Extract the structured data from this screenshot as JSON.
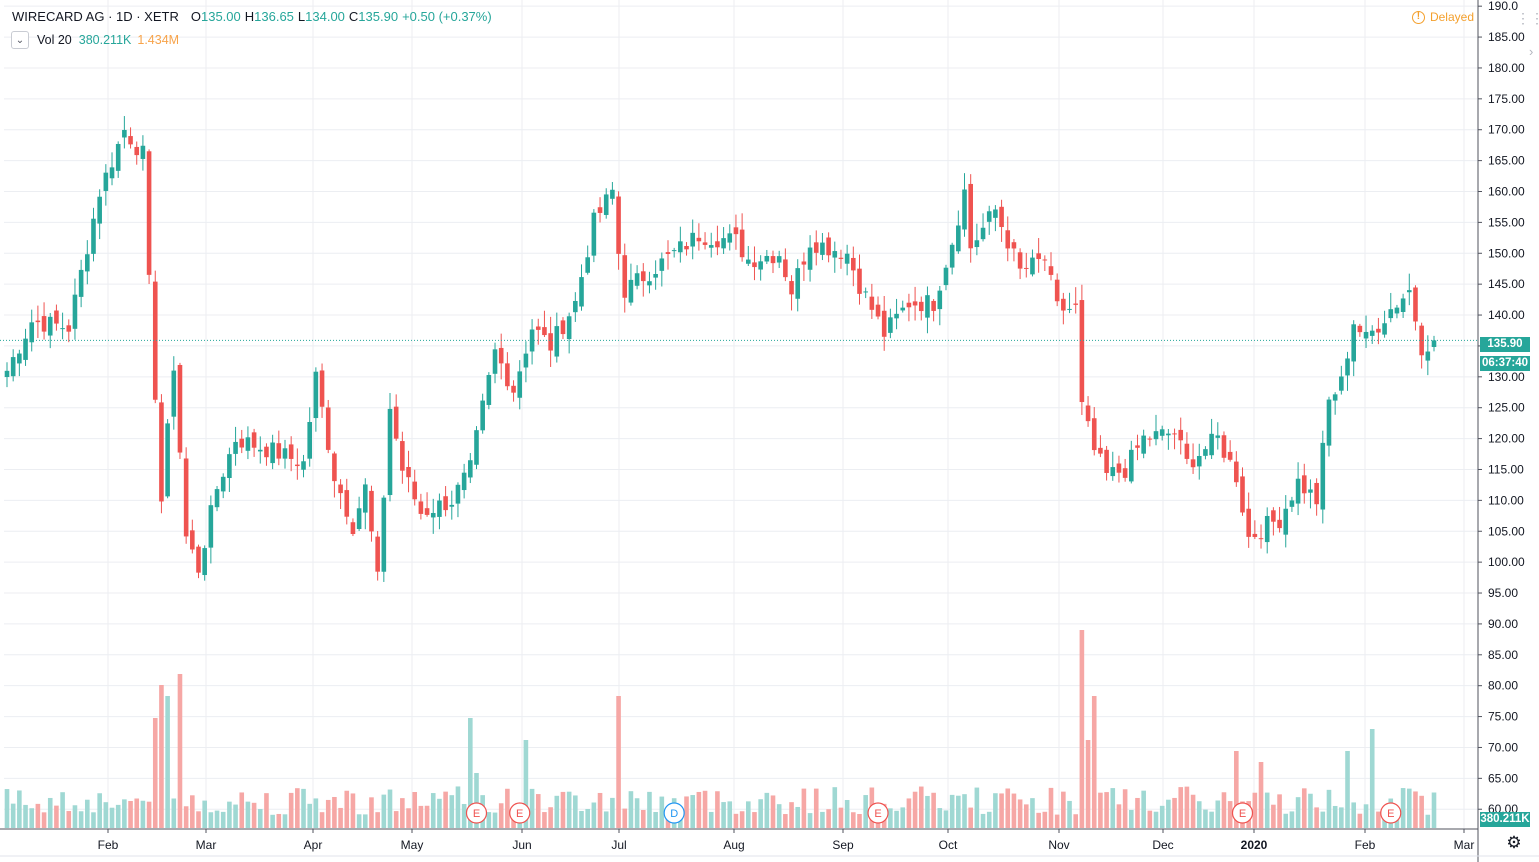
{
  "header": {
    "symbol": "WIRECARD AG · 1D · XETR",
    "o_label": "O",
    "o_val": "135.00",
    "h_label": "H",
    "h_val": "136.65",
    "l_label": "L",
    "l_val": "134.00",
    "c_label": "C",
    "c_val": "135.90",
    "change": "+0.50 (+0.37%)",
    "delayed": "Delayed",
    "delayed_icon": "warning-circle-icon"
  },
  "volume_legend": {
    "label": "Vol 20",
    "value": "380.211K",
    "ma_value": "1.434M",
    "collapse_icon": "chevron-down-icon"
  },
  "price_tags": {
    "last_price": "135.90",
    "countdown": "06:37:40",
    "volume": "380.211K"
  },
  "colors": {
    "up": "#26a69a",
    "down": "#ef5350",
    "vol_up": "#9fd8d3",
    "vol_down": "#f6a7a5",
    "grid": "#eceef2",
    "axis_text": "#131722"
  },
  "chart_data": {
    "type": "candlestick",
    "title": "WIRECARD AG · 1D · XETR",
    "y_ticks": [
      "60.00",
      "65.00",
      "70.00",
      "75.00",
      "80.00",
      "85.00",
      "90.00",
      "95.00",
      "100.00",
      "105.00",
      "110.00",
      "115.00",
      "120.00",
      "125.00",
      "130.00",
      "135.00",
      "140.00",
      "145.00",
      "150.00",
      "155.00",
      "160.00",
      "165.00",
      "170.00",
      "175.00",
      "180.00",
      "185.00",
      "190.0"
    ],
    "ylim": [
      56.8,
      191.0
    ],
    "x_ticks": [
      "Feb",
      "Mar",
      "Apr",
      "May",
      "Jun",
      "Jul",
      "Aug",
      "Sep",
      "Oct",
      "Nov",
      "Dec",
      "2020",
      "Feb",
      "Mar"
    ],
    "last_price": 135.9,
    "grid": true,
    "close_anchors": [
      [
        0,
        131
      ],
      [
        4,
        139
      ],
      [
        10,
        138
      ],
      [
        15,
        160
      ],
      [
        19,
        170
      ],
      [
        22,
        166
      ],
      [
        23,
        145
      ],
      [
        25,
        110
      ],
      [
        27,
        132
      ],
      [
        29,
        104
      ],
      [
        31,
        99
      ],
      [
        34,
        112
      ],
      [
        37,
        120
      ],
      [
        43,
        118
      ],
      [
        48,
        116
      ],
      [
        50,
        130
      ],
      [
        53,
        114
      ],
      [
        56,
        106
      ],
      [
        58,
        112
      ],
      [
        60,
        97
      ],
      [
        62,
        125
      ],
      [
        64,
        115
      ],
      [
        67,
        108
      ],
      [
        72,
        110
      ],
      [
        75,
        115
      ],
      [
        77,
        125
      ],
      [
        79,
        134
      ],
      [
        82,
        128
      ],
      [
        85,
        138
      ],
      [
        88,
        135
      ],
      [
        92,
        142
      ],
      [
        95,
        155
      ],
      [
        98,
        160
      ],
      [
        99,
        150
      ],
      [
        100,
        144
      ],
      [
        104,
        147
      ],
      [
        108,
        150
      ],
      [
        112,
        153
      ],
      [
        118,
        152
      ],
      [
        120,
        149
      ],
      [
        125,
        150
      ],
      [
        127,
        144
      ],
      [
        130,
        152
      ],
      [
        136,
        150
      ],
      [
        138,
        145
      ],
      [
        142,
        137
      ],
      [
        146,
        142
      ],
      [
        150,
        142
      ],
      [
        153,
        152
      ],
      [
        155,
        160
      ],
      [
        156,
        151
      ],
      [
        160,
        157
      ],
      [
        164,
        147
      ],
      [
        168,
        149
      ],
      [
        170,
        141
      ],
      [
        173,
        141
      ],
      [
        174,
        125
      ],
      [
        176,
        118
      ],
      [
        178,
        114
      ],
      [
        181,
        115
      ],
      [
        184,
        120
      ],
      [
        189,
        121
      ],
      [
        191,
        116
      ],
      [
        196,
        120
      ],
      [
        199,
        114
      ],
      [
        201,
        104
      ],
      [
        204,
        106
      ],
      [
        206,
        107
      ],
      [
        209,
        113
      ],
      [
        212,
        110
      ],
      [
        214,
        126
      ],
      [
        216,
        129
      ],
      [
        218,
        139
      ],
      [
        220,
        136
      ],
      [
        224,
        141
      ],
      [
        227,
        144
      ],
      [
        229,
        135
      ],
      [
        231,
        136
      ]
    ],
    "volume_events": [
      {
        "bar": 24,
        "v": 10
      },
      {
        "bar": 25,
        "v": 13
      },
      {
        "bar": 26,
        "v": 12
      },
      {
        "bar": 28,
        "v": 14
      },
      {
        "bar": 75,
        "v": 10
      },
      {
        "bar": 76,
        "v": 5
      },
      {
        "bar": 84,
        "v": 8
      },
      {
        "bar": 99,
        "v": 12
      },
      {
        "bar": 174,
        "v": 18
      },
      {
        "bar": 175,
        "v": 8
      },
      {
        "bar": 176,
        "v": 12
      },
      {
        "bar": 199,
        "v": 7
      },
      {
        "bar": 203,
        "v": 6
      },
      {
        "bar": 217,
        "v": 7
      },
      {
        "bar": 221,
        "v": 9
      }
    ],
    "event_markers": [
      {
        "label": "E",
        "bar": 76,
        "color": "#ef5350"
      },
      {
        "label": "E",
        "bar": 83,
        "color": "#ef5350"
      },
      {
        "label": "D",
        "bar": 108,
        "color": "#2196f3"
      },
      {
        "label": "E",
        "bar": 141,
        "color": "#ef5350"
      },
      {
        "label": "E",
        "bar": 200,
        "color": "#ef5350"
      },
      {
        "label": "E",
        "bar": 224,
        "color": "#ef5350"
      }
    ]
  }
}
